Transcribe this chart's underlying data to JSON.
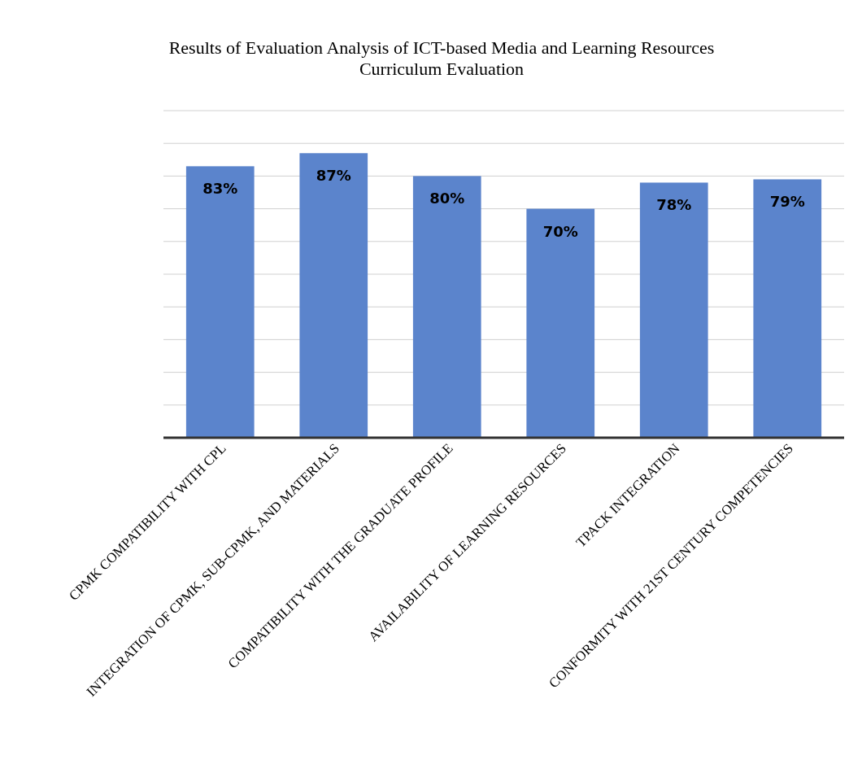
{
  "chart_data": {
    "type": "bar",
    "title": "Results of Evaluation Analysis of ICT-based Media and Learning Resources Curriculum Evaluation",
    "categories": [
      "CPMK COMPATIBILITY WITH CPL",
      "INTEGRATION OF CPMK, SUB-CPMK, AND MATERIALS",
      "COMPATIBILITY WITH THE GRADUATE PROFILE",
      "AVAILABILITY OF LEARNING RESOURCES",
      "TPACK INTEGRATION",
      "CONFORMITY WITH 21ST CENTURY COMPETENCIES"
    ],
    "values": [
      83,
      87,
      80,
      70,
      78,
      79
    ],
    "value_labels": [
      "83%",
      "87%",
      "80%",
      "70%",
      "78%",
      "79%"
    ],
    "color": "#5b84cc",
    "ylim": [
      0,
      100
    ],
    "yticks": [
      {
        "value": 0,
        "label": null
      },
      {
        "value": 10,
        "label": null
      },
      {
        "value": 20,
        "label": null
      },
      {
        "value": 30,
        "label": null
      },
      {
        "value": 40,
        "label": null
      },
      {
        "value": 50,
        "label": null
      },
      {
        "value": 60,
        "label": null
      },
      {
        "value": 70,
        "label": null
      },
      {
        "value": 80,
        "label": null
      },
      {
        "value": 90,
        "label": null
      },
      {
        "value": 100,
        "label": null
      }
    ],
    "grid": "y",
    "tick_labels": "x"
  }
}
